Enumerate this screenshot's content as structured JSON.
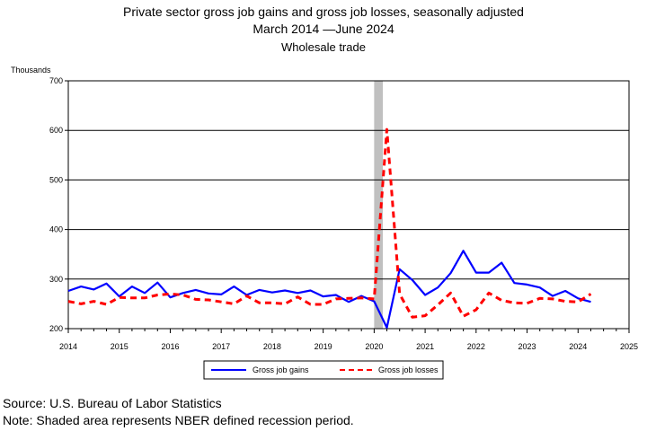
{
  "title": "Private sector gross job gains and gross job losses, seasonally adjusted",
  "subtitle": "March 2014  —June 2024",
  "subtitle2": "Wholesale trade",
  "footer": {
    "source": "Source: U.S. Bureau of Labor Statistics",
    "note": "Note: Shaded area represents NBER defined recession period."
  },
  "chart_data": {
    "type": "line",
    "title": "Private sector gross job gains and gross job losses, seasonally adjusted",
    "subtitle": "March 2014  —June 2024",
    "ylabel": "Thousands",
    "xlabel": "",
    "ylim": [
      200,
      700
    ],
    "xlim": [
      2014,
      2025
    ],
    "yticks": [
      200,
      300,
      400,
      500,
      600,
      700
    ],
    "xticks": [
      2014,
      2015,
      2016,
      2017,
      2018,
      2019,
      2020,
      2021,
      2022,
      2023,
      2024,
      2025
    ],
    "grid": "horizontal",
    "legend_position": "bottom",
    "recession": [
      2020.0,
      2020.17
    ],
    "x": [
      2014.0,
      2014.25,
      2014.5,
      2014.75,
      2015.0,
      2015.25,
      2015.5,
      2015.75,
      2016.0,
      2016.25,
      2016.5,
      2016.75,
      2017.0,
      2017.25,
      2017.5,
      2017.75,
      2018.0,
      2018.25,
      2018.5,
      2018.75,
      2019.0,
      2019.25,
      2019.5,
      2019.75,
      2020.0,
      2020.25,
      2020.5,
      2020.75,
      2021.0,
      2021.25,
      2021.5,
      2021.75,
      2022.0,
      2022.25,
      2022.5,
      2022.75,
      2023.0,
      2023.25,
      2023.5,
      2023.75,
      2024.0,
      2024.25
    ],
    "series": [
      {
        "name": "Gross job gains",
        "color": "#0000ff",
        "style": "solid",
        "values": [
          276,
          285,
          279,
          291,
          265,
          285,
          272,
          293,
          263,
          272,
          278,
          271,
          269,
          285,
          268,
          278,
          273,
          277,
          272,
          277,
          265,
          268,
          254,
          266,
          255,
          202,
          320,
          298,
          268,
          283,
          312,
          357,
          313,
          313,
          333,
          292,
          289,
          283,
          266,
          276,
          261,
          254
        ]
      },
      {
        "name": "Gross job losses",
        "color": "#ff0000",
        "style": "dashed",
        "values": [
          255,
          250,
          255,
          249,
          263,
          262,
          262,
          268,
          270,
          268,
          259,
          258,
          254,
          250,
          266,
          252,
          252,
          250,
          264,
          249,
          249,
          260,
          261,
          262,
          260,
          602,
          270,
          223,
          226,
          248,
          272,
          225,
          238,
          272,
          257,
          252,
          251,
          261,
          260,
          255,
          254,
          270
        ]
      }
    ]
  }
}
